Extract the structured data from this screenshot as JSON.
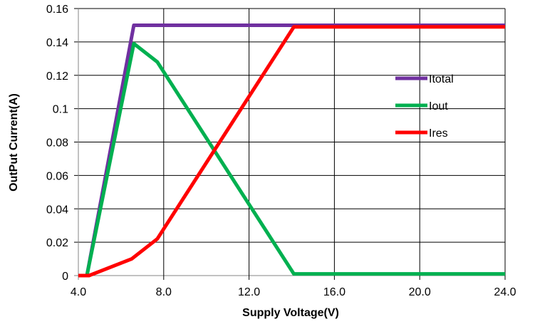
{
  "chart_data": {
    "type": "line",
    "xlabel": "Supply Voltage(V)",
    "ylabel": "OutPut Current(A)",
    "xlim": [
      4,
      24
    ],
    "ylim": [
      0,
      0.16
    ],
    "xticks": [
      4,
      8,
      12,
      16,
      20,
      24
    ],
    "xtick_labels": [
      "4.0",
      "8.0",
      "12.0",
      "16.0",
      "20.0",
      "24.0"
    ],
    "yticks": [
      0,
      0.02,
      0.04,
      0.06,
      0.08,
      0.1,
      0.12,
      0.14,
      0.16
    ],
    "ytick_labels": [
      "0",
      "0.02",
      "0.04",
      "0.06",
      "0.08",
      "0.1",
      "0.12",
      "0.14",
      "0.16"
    ],
    "grid": true,
    "legend_position": "right",
    "series": [
      {
        "name": "Itotal",
        "color": "#7030a0",
        "points": [
          [
            4.4,
            0
          ],
          [
            6.6,
            0.15
          ],
          [
            24,
            0.15
          ]
        ]
      },
      {
        "name": "Iout",
        "color": "#00b050",
        "points": [
          [
            4.4,
            0
          ],
          [
            6.6,
            0.139
          ],
          [
            7.7,
            0.128
          ],
          [
            14.1,
            0.001
          ],
          [
            24,
            0.001
          ]
        ]
      },
      {
        "name": "Ires",
        "color": "#ff0000",
        "points": [
          [
            4.0,
            0
          ],
          [
            4.5,
            0
          ],
          [
            6.5,
            0.01
          ],
          [
            7.7,
            0.022
          ],
          [
            14.1,
            0.149
          ],
          [
            24,
            0.149
          ]
        ]
      }
    ]
  }
}
